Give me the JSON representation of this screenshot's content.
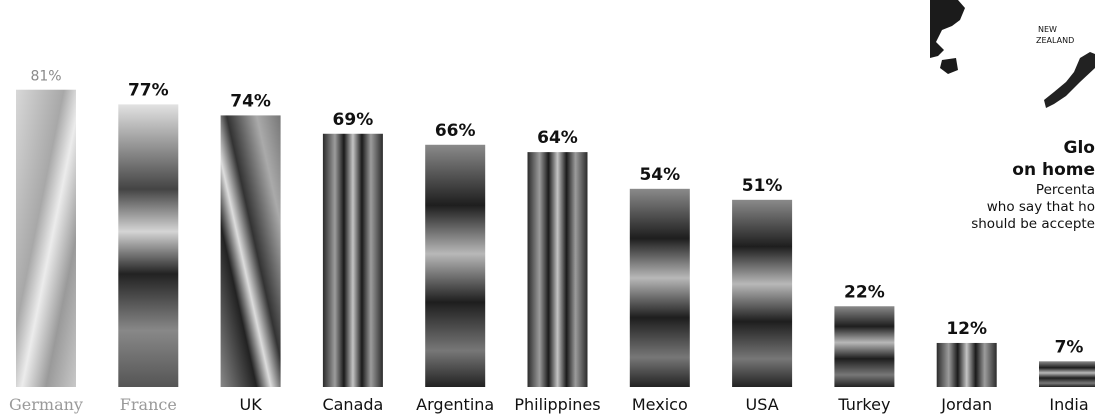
{
  "chart_data": {
    "type": "bar",
    "title": "Glo... on homo...",
    "categories": [
      "Germany",
      "France",
      "UK",
      "Canada",
      "Argentina",
      "Philippines",
      "Mexico",
      "USA",
      "Turkey",
      "Jordan",
      "India"
    ],
    "values": [
      81,
      77,
      74,
      69,
      66,
      64,
      54,
      51,
      22,
      12,
      7
    ],
    "value_labels": [
      "81%",
      "77%",
      "74%",
      "69%",
      "66%",
      "64%",
      "54%",
      "51%",
      "22%",
      "12%",
      "7%"
    ],
    "ylim": [
      0,
      100
    ],
    "grid": false,
    "legend": "none"
  },
  "caption": {
    "title_line1": "Glo",
    "title_line2": "on home",
    "sub_line1": "Percenta",
    "sub_line2": "who say that ho",
    "sub_line3": "should be accepte"
  },
  "map": {
    "label_line1": "NEW",
    "label_line2": "ZEALAND"
  },
  "colors": {
    "bar_dark": "#1a1a1a",
    "bar_light": "#d0d0d0",
    "text": "#111111"
  }
}
